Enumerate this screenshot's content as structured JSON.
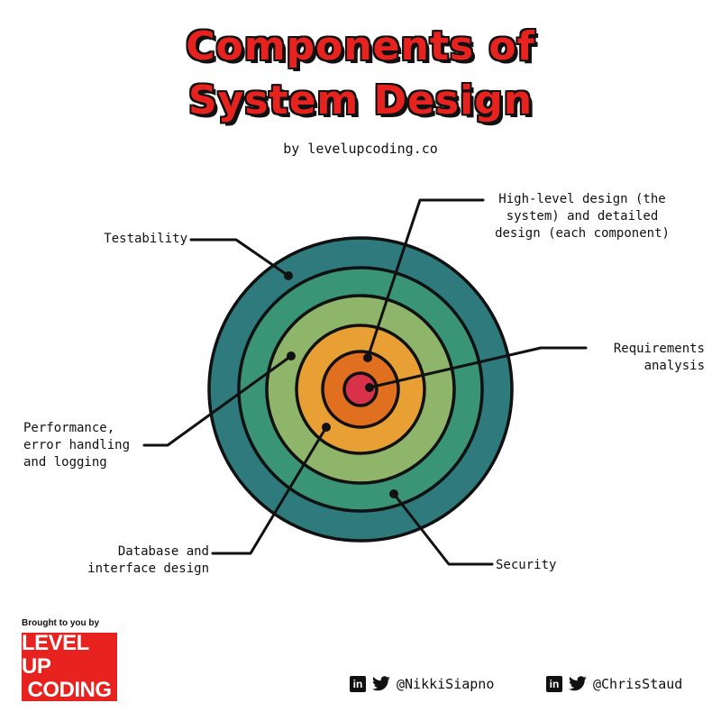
{
  "header": {
    "title_line_1": "Components of",
    "title_line_2": "System Design",
    "byline": "by levelupcoding.co"
  },
  "colors": {
    "title": "#e8231f",
    "ring_outer": "#2e7a7d",
    "ring_2": "#3a9476",
    "ring_3": "#8fb56b",
    "ring_4": "#e8a035",
    "ring_5": "#e07020",
    "ring_center": "#d8324a",
    "stroke": "#111111",
    "logo_bg": "#e8231f"
  },
  "diagram": {
    "labels": {
      "testability": "Testability",
      "high_level_design": "High-level design (the\nsystem) and detailed\ndesign (each component)",
      "requirements": "Requirements\nanalysis",
      "performance": "Performance,\nerror handling\nand logging",
      "database": "Database and\ninterface design",
      "security": "Security"
    }
  },
  "footer": {
    "brought_by": "Brought to you by",
    "logo_line_1": "LEVEL UP",
    "logo_line_2": "CODING",
    "linkedin_icon": "linkedin-icon",
    "twitter_icon": "twitter-icon",
    "handle_1": "@NikkiSiapno",
    "handle_2": "@ChrisStaud"
  }
}
